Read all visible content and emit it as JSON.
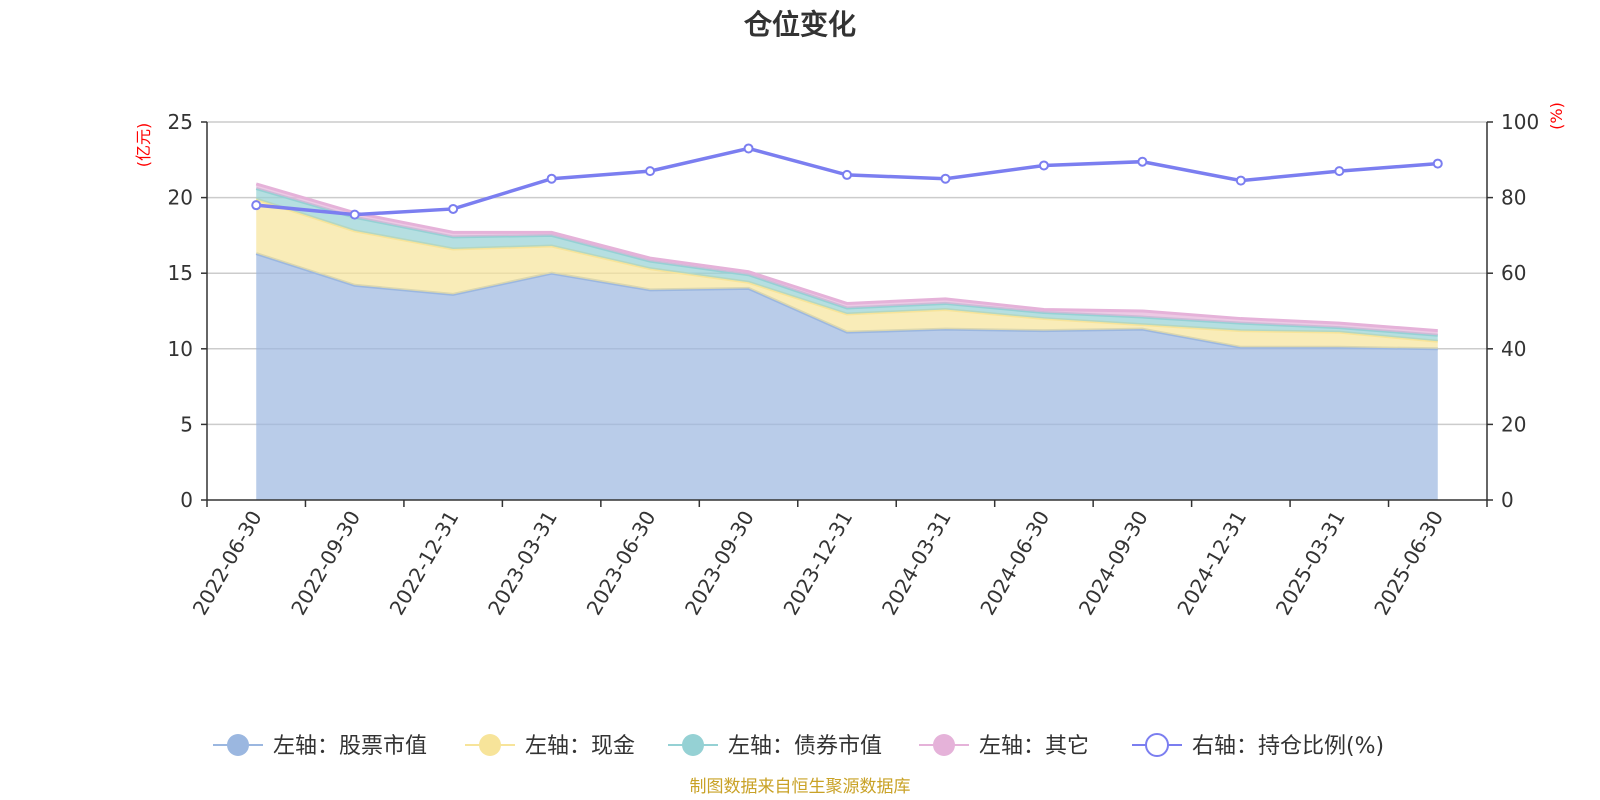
{
  "chart_data": {
    "type": "area",
    "title": "仓位变化",
    "categories": [
      "2022-06-30",
      "2022-09-30",
      "2022-12-31",
      "2023-03-31",
      "2023-06-30",
      "2023-09-30",
      "2023-12-31",
      "2024-03-31",
      "2024-06-30",
      "2024-09-30",
      "2024-12-31",
      "2025-03-31",
      "2025-06-30"
    ],
    "left_axis": {
      "unit": "(亿元)",
      "ylim": [
        0,
        25
      ],
      "ticks": [
        0,
        5,
        10,
        15,
        20,
        25
      ]
    },
    "right_axis": {
      "unit": "(%)",
      "ylim": [
        0,
        100
      ],
      "ticks": [
        0,
        20,
        40,
        60,
        80,
        100
      ]
    },
    "series": [
      {
        "name": "左轴：股票市值",
        "axis": "left",
        "stacked": true,
        "color": "#9bb7e0",
        "values": [
          16.3,
          14.2,
          13.6,
          15.0,
          13.9,
          14.0,
          11.1,
          11.3,
          11.2,
          11.3,
          10.1,
          10.1,
          10.0
        ]
      },
      {
        "name": "左轴：现金",
        "axis": "left",
        "stacked": true,
        "color": "#f7e49a",
        "values": [
          3.6,
          3.6,
          3.0,
          1.8,
          1.4,
          0.4,
          1.2,
          1.3,
          0.8,
          0.3,
          1.1,
          1.0,
          0.5
        ]
      },
      {
        "name": "左轴：债券市值",
        "axis": "left",
        "stacked": true,
        "color": "#95d1d4",
        "values": [
          0.7,
          0.9,
          0.8,
          0.7,
          0.5,
          0.5,
          0.4,
          0.4,
          0.4,
          0.5,
          0.5,
          0.3,
          0.4
        ]
      },
      {
        "name": "左轴：其它",
        "axis": "left",
        "stacked": true,
        "color": "#e5b2d9",
        "values": [
          0.3,
          0.3,
          0.3,
          0.2,
          0.2,
          0.2,
          0.3,
          0.3,
          0.2,
          0.4,
          0.3,
          0.3,
          0.3
        ]
      },
      {
        "name": "右轴：持仓比例(%)",
        "axis": "right",
        "stacked": false,
        "color": "#7b7ef0",
        "values": [
          78.0,
          75.5,
          77.0,
          85.0,
          87.0,
          93.0,
          86.0,
          85.0,
          88.5,
          89.5,
          84.5,
          87.0,
          89.0
        ]
      }
    ],
    "legend_position": "bottom",
    "grid": true
  },
  "source_text": "制图数据来自恒生聚源数据库"
}
